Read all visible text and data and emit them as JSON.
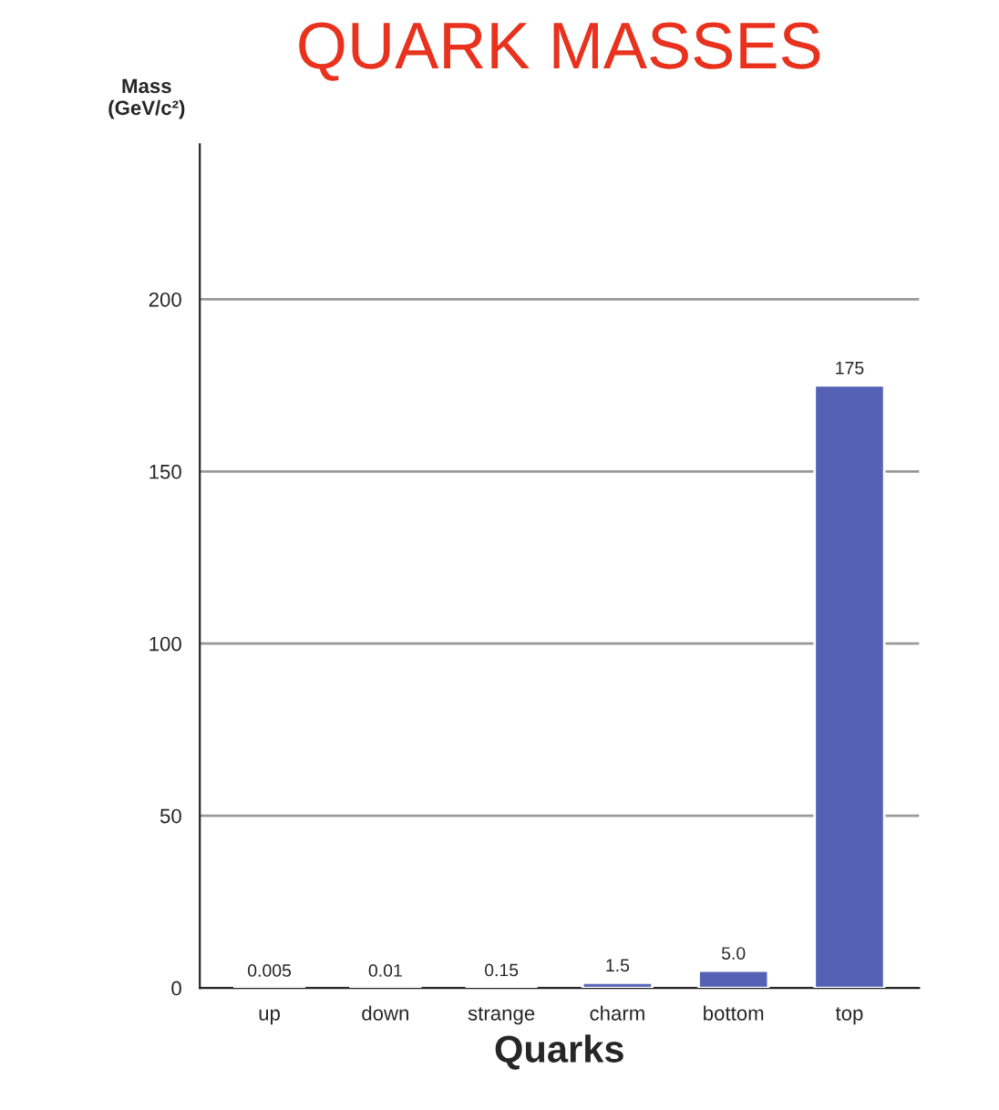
{
  "chart_data": {
    "type": "bar",
    "title": "QUARK MASSES",
    "xlabel": "Quarks",
    "ylabel": "Mass\n(GeV/c²)",
    "categories": [
      "up",
      "down",
      "strange",
      "charm",
      "bottom",
      "top"
    ],
    "values": [
      0.005,
      0.01,
      0.15,
      1.5,
      5.0,
      175
    ],
    "value_labels": [
      "0.005",
      "0.01",
      "0.15",
      "1.5",
      "5.0",
      "175"
    ],
    "color": "#5561b5",
    "ylim": [
      0,
      245
    ],
    "yticks": [
      0,
      50,
      100,
      150,
      200
    ],
    "grid": "y",
    "legend": false
  }
}
